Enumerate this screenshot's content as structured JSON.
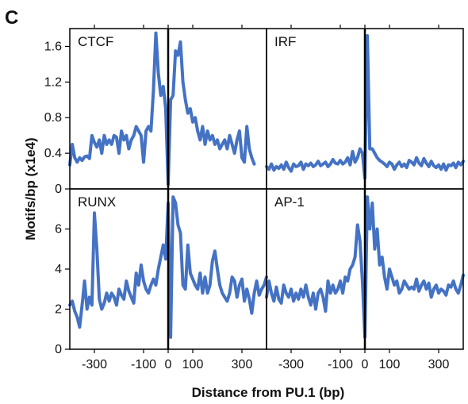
{
  "figure": {
    "panel_letter": "C",
    "ylabel": "Motifs/bp (x1e4)",
    "xlabel": "Distance from PU.1 (bp)"
  },
  "chart_data": {
    "type": "line",
    "line_color": "#4472C4",
    "grid": false,
    "panels": [
      {
        "name": "CTCF",
        "row": 0,
        "col": 0,
        "xlim": [
          -400,
          400
        ],
        "ylim": [
          0,
          1.8
        ],
        "yticks": [
          0,
          0.4,
          0.8,
          1.2,
          1.6
        ],
        "ytick_labels": [
          "0",
          "0.4",
          "0.8",
          "1.2",
          "1.6"
        ],
        "x": [
          -400,
          -390,
          -380,
          -370,
          -360,
          -350,
          -340,
          -330,
          -320,
          -310,
          -300,
          -290,
          -280,
          -270,
          -260,
          -250,
          -240,
          -230,
          -220,
          -210,
          -200,
          -190,
          -180,
          -170,
          -160,
          -150,
          -140,
          -130,
          -120,
          -110,
          -100,
          -90,
          -80,
          -70,
          -60,
          -50,
          -40,
          -30,
          -20,
          -10,
          0,
          10,
          20,
          30,
          40,
          50,
          60,
          70,
          80,
          90,
          100,
          110,
          120,
          130,
          140,
          150,
          160,
          170,
          180,
          190,
          200,
          210,
          220,
          230,
          240,
          250,
          260,
          270,
          280,
          290,
          300,
          310,
          320,
          330,
          340,
          350
        ],
        "y": [
          0.27,
          0.5,
          0.35,
          0.3,
          0.35,
          0.32,
          0.36,
          0.37,
          0.34,
          0.6,
          0.52,
          0.47,
          0.55,
          0.4,
          0.6,
          0.5,
          0.55,
          0.5,
          0.6,
          0.58,
          0.4,
          0.65,
          0.55,
          0.6,
          0.45,
          0.55,
          0.6,
          0.7,
          0.65,
          0.6,
          0.3,
          0.65,
          0.7,
          0.65,
          1.1,
          1.75,
          1.3,
          1.05,
          1.15,
          0.9,
          0.05,
          1.0,
          1.05,
          1.55,
          1.5,
          1.65,
          1.2,
          1.0,
          0.85,
          0.9,
          0.75,
          0.8,
          0.65,
          0.55,
          0.7,
          0.5,
          0.65,
          0.55,
          0.6,
          0.5,
          0.55,
          0.45,
          0.5,
          0.55,
          0.45,
          0.6,
          0.5,
          0.4,
          0.55,
          0.65,
          0.35,
          0.3,
          0.7,
          0.45,
          0.35,
          0.28
        ]
      },
      {
        "name": "IRF",
        "row": 0,
        "col": 1,
        "xlim": [
          -400,
          400
        ],
        "ylim": [
          0,
          1.8
        ],
        "yticks": [
          0,
          0.4,
          0.8,
          1.2,
          1.6
        ],
        "x": [
          -400,
          -390,
          -380,
          -370,
          -360,
          -350,
          -340,
          -330,
          -320,
          -310,
          -300,
          -290,
          -280,
          -270,
          -260,
          -250,
          -240,
          -230,
          -220,
          -210,
          -200,
          -190,
          -180,
          -170,
          -160,
          -150,
          -140,
          -130,
          -120,
          -110,
          -100,
          -90,
          -80,
          -70,
          -60,
          -50,
          -40,
          -30,
          -20,
          -10,
          0,
          10,
          20,
          30,
          40,
          50,
          60,
          70,
          80,
          90,
          100,
          110,
          120,
          130,
          140,
          150,
          160,
          170,
          180,
          190,
          200,
          210,
          220,
          230,
          240,
          250,
          260,
          270,
          280,
          290,
          300,
          310,
          320,
          330,
          340,
          350,
          360,
          370,
          380,
          390,
          400
        ],
        "y": [
          0.25,
          0.22,
          0.28,
          0.21,
          0.25,
          0.23,
          0.27,
          0.22,
          0.3,
          0.24,
          0.2,
          0.28,
          0.25,
          0.26,
          0.3,
          0.22,
          0.28,
          0.26,
          0.29,
          0.25,
          0.27,
          0.31,
          0.26,
          0.28,
          0.3,
          0.25,
          0.28,
          0.33,
          0.29,
          0.28,
          0.32,
          0.28,
          0.3,
          0.35,
          0.27,
          0.42,
          0.3,
          0.35,
          0.45,
          0.4,
          0.12,
          1.72,
          0.45,
          0.45,
          0.4,
          0.35,
          0.32,
          0.3,
          0.28,
          0.25,
          0.3,
          0.28,
          0.22,
          0.27,
          0.3,
          0.25,
          0.28,
          0.24,
          0.32,
          0.3,
          0.27,
          0.35,
          0.29,
          0.26,
          0.34,
          0.29,
          0.25,
          0.31,
          0.26,
          0.24,
          0.27,
          0.22,
          0.28,
          0.21,
          0.27,
          0.26,
          0.29,
          0.24,
          0.3,
          0.27,
          0.31
        ]
      },
      {
        "name": "RUNX",
        "row": 1,
        "col": 0,
        "xlim": [
          -400,
          400
        ],
        "ylim": [
          0,
          8
        ],
        "yticks": [
          0,
          2,
          4,
          6
        ],
        "ytick_labels": [
          "0",
          "2",
          "4",
          "6"
        ],
        "x": [
          -400,
          -390,
          -380,
          -370,
          -360,
          -350,
          -340,
          -330,
          -320,
          -310,
          -300,
          -290,
          -280,
          -270,
          -260,
          -250,
          -240,
          -230,
          -220,
          -210,
          -200,
          -190,
          -180,
          -170,
          -160,
          -150,
          -140,
          -130,
          -120,
          -110,
          -100,
          -90,
          -80,
          -70,
          -60,
          -50,
          -40,
          -30,
          -20,
          -10,
          0,
          10,
          20,
          30,
          40,
          50,
          60,
          70,
          80,
          90,
          100,
          110,
          120,
          130,
          140,
          150,
          160,
          170,
          180,
          190,
          200,
          210,
          220,
          230,
          240,
          250,
          260,
          270,
          280,
          290,
          300,
          310,
          320,
          330,
          340,
          350,
          360,
          370,
          380,
          390,
          400
        ],
        "y": [
          2.2,
          2.4,
          1.9,
          1.6,
          1.1,
          2.2,
          3.4,
          2.0,
          2.6,
          2.2,
          6.8,
          5.0,
          2.5,
          2.0,
          2.3,
          2.8,
          2.4,
          2.8,
          2.6,
          2.2,
          3.0,
          2.7,
          2.5,
          3.4,
          2.9,
          2.6,
          2.3,
          3.8,
          3.2,
          4.2,
          3.4,
          3.0,
          2.8,
          3.2,
          3.5,
          3.2,
          4.0,
          4.6,
          5.2,
          4.5,
          7.3,
          0.6,
          7.6,
          7.3,
          6.2,
          5.8,
          3.2,
          3.0,
          5.2,
          3.8,
          3.5,
          3.2,
          3.0,
          3.8,
          2.8,
          3.6,
          2.8,
          3.2,
          4.4,
          4.9,
          4.0,
          3.2,
          2.8,
          2.6,
          2.4,
          2.8,
          3.6,
          3.4,
          2.6,
          3.2,
          3.5,
          2.4,
          3.0,
          2.5,
          1.8,
          2.8,
          3.4,
          2.7,
          3.0,
          3.2,
          3.6
        ]
      },
      {
        "name": "AP-1",
        "row": 1,
        "col": 1,
        "xlim": [
          -400,
          400
        ],
        "ylim": [
          0,
          8
        ],
        "yticks": [
          0,
          2,
          4,
          6
        ],
        "x": [
          -400,
          -390,
          -380,
          -370,
          -360,
          -350,
          -340,
          -330,
          -320,
          -310,
          -300,
          -290,
          -280,
          -270,
          -260,
          -250,
          -240,
          -230,
          -220,
          -210,
          -200,
          -190,
          -180,
          -170,
          -160,
          -150,
          -140,
          -130,
          -120,
          -110,
          -100,
          -90,
          -80,
          -70,
          -60,
          -50,
          -40,
          -30,
          -20,
          -10,
          0,
          10,
          20,
          30,
          40,
          50,
          60,
          70,
          80,
          90,
          100,
          110,
          120,
          130,
          140,
          150,
          160,
          170,
          180,
          190,
          200,
          210,
          220,
          230,
          240,
          250,
          260,
          270,
          280,
          290,
          300,
          310,
          320,
          330,
          340,
          350,
          360,
          370,
          380,
          390,
          400
        ],
        "y": [
          2.6,
          3.4,
          2.8,
          2.4,
          3.1,
          2.5,
          2.3,
          3.2,
          2.8,
          2.6,
          3.0,
          2.4,
          2.8,
          2.5,
          3.0,
          2.6,
          3.2,
          2.6,
          2.2,
          2.8,
          2.0,
          2.8,
          3.0,
          2.6,
          1.9,
          3.4,
          2.8,
          3.2,
          2.8,
          3.0,
          3.4,
          2.8,
          3.6,
          3.4,
          4.0,
          4.2,
          4.6,
          6.2,
          5.4,
          3.4,
          0.6,
          7.6,
          6.0,
          7.3,
          5.0,
          6.0,
          4.2,
          4.6,
          3.6,
          3.0,
          4.0,
          3.6,
          3.2,
          3.4,
          2.8,
          3.0,
          3.4,
          3.2,
          3.0,
          3.1,
          3.0,
          3.5,
          2.9,
          3.2,
          3.4,
          3.0,
          3.3,
          2.6,
          3.0,
          3.2,
          2.8,
          3.0,
          2.9,
          2.7,
          3.2,
          3.1,
          3.4,
          3.0,
          2.8,
          3.2,
          3.7
        ]
      }
    ],
    "xticks": [
      -300,
      -100,
      0,
      100,
      300
    ],
    "xtick_labels": [
      "-300",
      "-100",
      "0",
      "100",
      "300"
    ]
  }
}
